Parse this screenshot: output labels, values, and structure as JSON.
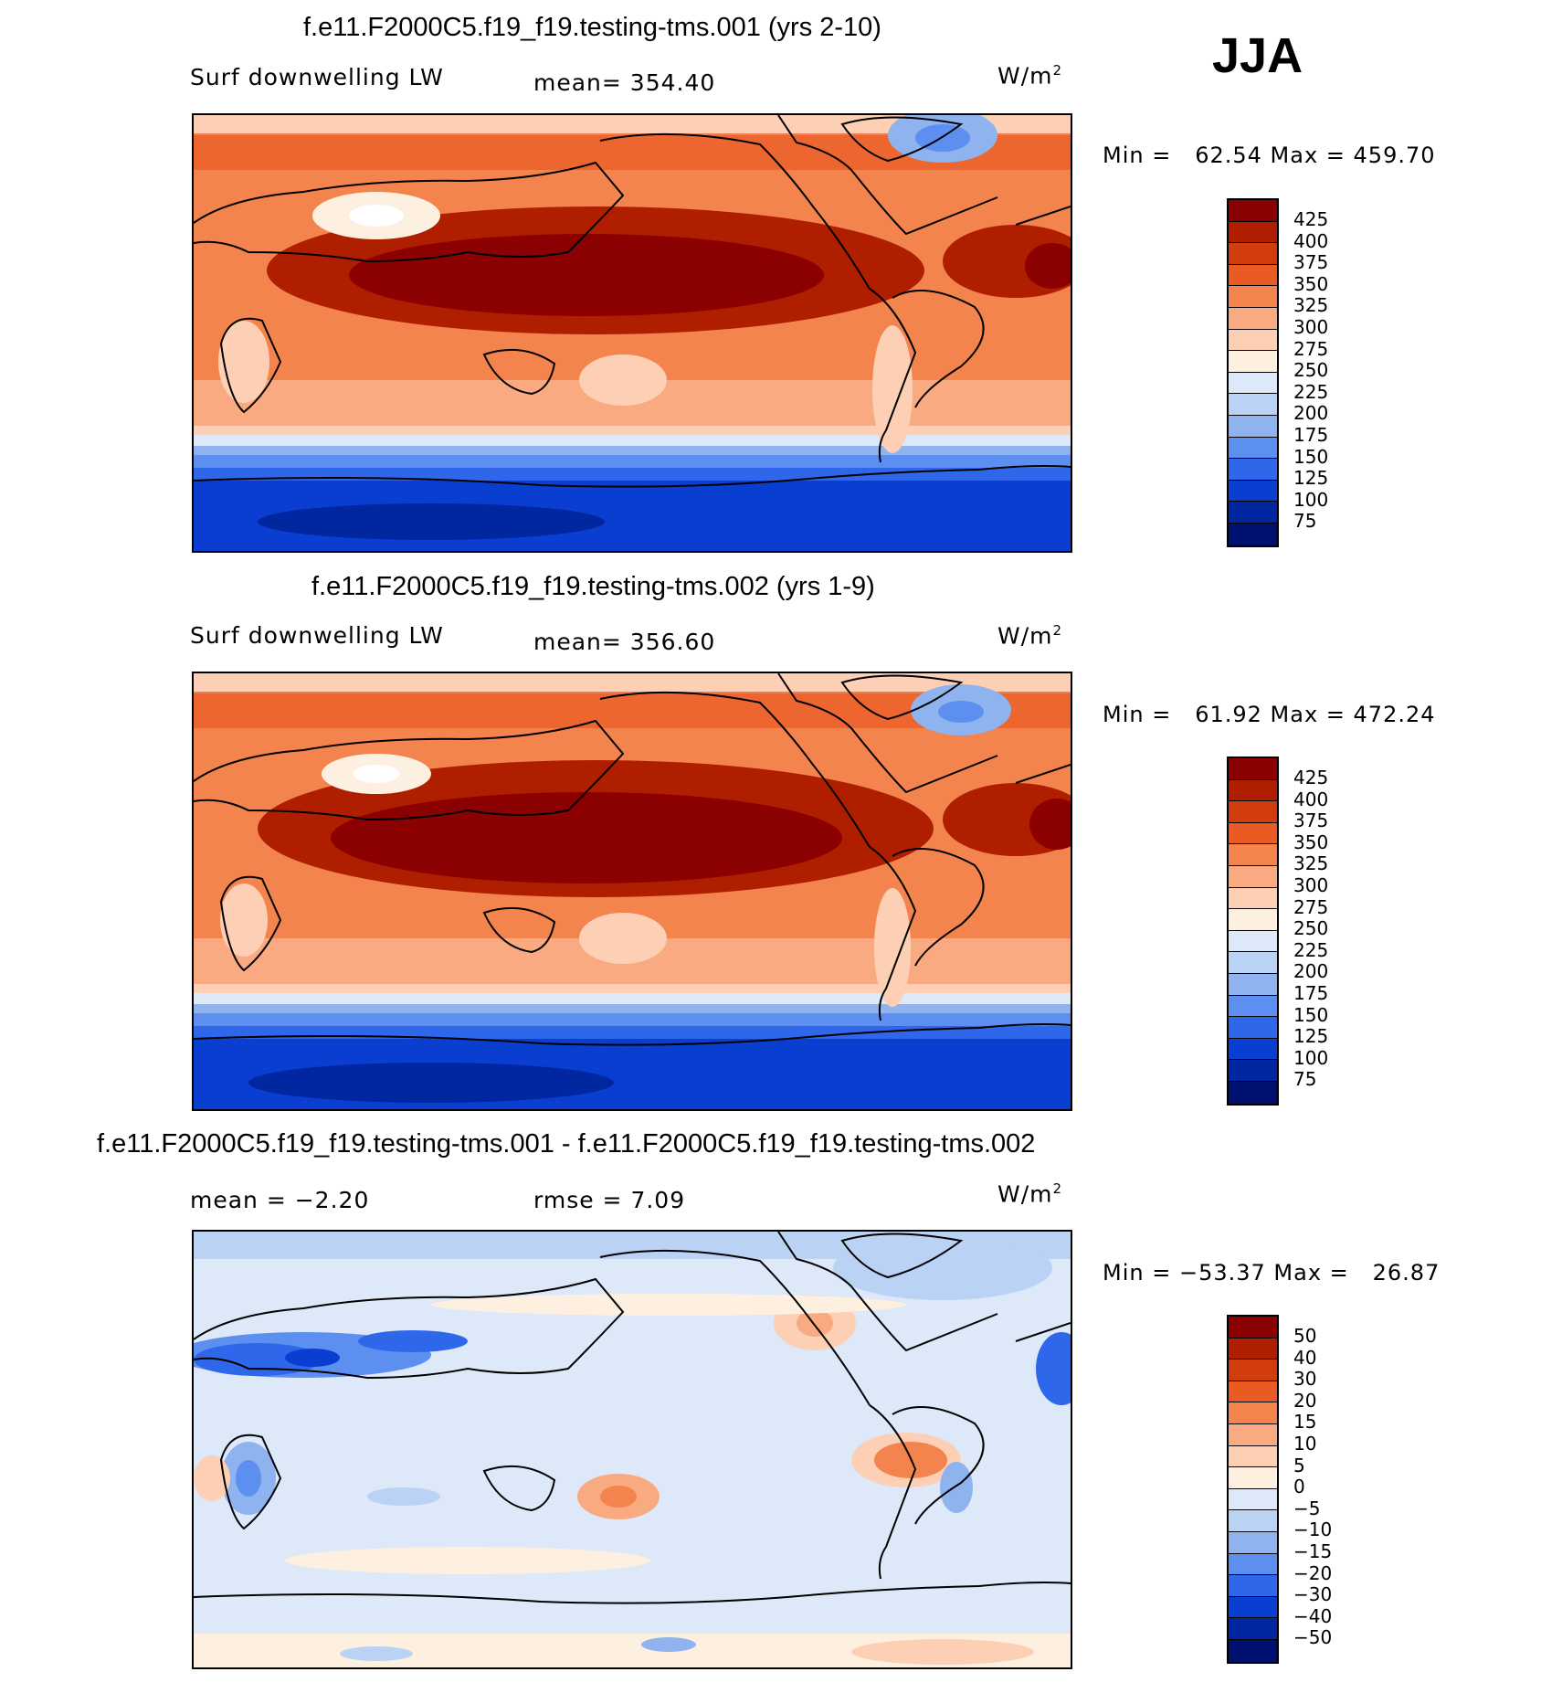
{
  "season": "JJA",
  "units": "W/m",
  "units_sup": "2",
  "panels": [
    {
      "title": "f.e11.F2000C5.f19_f19.testing-tms.001 (yrs 2-10)",
      "variable": "Surf downwelling LW",
      "stat1": "mean= 354.40",
      "stat2": "",
      "minmax": "Min =   62.54 Max = 459.70",
      "colorbar": {
        "labels": [
          "425",
          "400",
          "375",
          "350",
          "325",
          "300",
          "275",
          "250",
          "225",
          "200",
          "175",
          "150",
          "125",
          "100",
          "75"
        ],
        "colors": [
          "#8b0000",
          "#b01e00",
          "#d13d0d",
          "#ea5a23",
          "#f3844e",
          "#f9aa80",
          "#fdd0b5",
          "#fef0e1",
          "#dde8f8",
          "#bad2f4",
          "#8fb3ef",
          "#5d8ff0",
          "#2e67ea",
          "#0a3ed1",
          "#0026a0",
          "#00106e"
        ]
      }
    },
    {
      "title": "f.e11.F2000C5.f19_f19.testing-tms.002 (yrs 1-9)",
      "variable": "Surf downwelling LW",
      "stat1": "mean= 356.60",
      "stat2": "",
      "minmax": "Min =   61.92 Max = 472.24",
      "colorbar": {
        "labels": [
          "425",
          "400",
          "375",
          "350",
          "325",
          "300",
          "275",
          "250",
          "225",
          "200",
          "175",
          "150",
          "125",
          "100",
          "75"
        ],
        "colors": [
          "#8b0000",
          "#b01e00",
          "#d13d0d",
          "#ea5a23",
          "#f3844e",
          "#f9aa80",
          "#fdd0b5",
          "#fef0e1",
          "#dde8f8",
          "#bad2f4",
          "#8fb3ef",
          "#5d8ff0",
          "#2e67ea",
          "#0a3ed1",
          "#0026a0",
          "#00106e"
        ]
      }
    },
    {
      "title": "f.e11.F2000C5.f19_f19.testing-tms.001 - f.e11.F2000C5.f19_f19.testing-tms.002",
      "variable": "",
      "stat1": "mean =   −2.20",
      "stat2": "rmse =    7.09",
      "minmax": "Min = −53.37 Max =   26.87",
      "colorbar": {
        "labels": [
          "50",
          "40",
          "30",
          "20",
          "15",
          "10",
          "5",
          "0",
          "−5",
          "−10",
          "−15",
          "−20",
          "−30",
          "−40",
          "−50"
        ],
        "colors": [
          "#8b0000",
          "#b01e00",
          "#d13d0d",
          "#ea5a23",
          "#f3844e",
          "#f9aa80",
          "#fdd0b5",
          "#fef0e1",
          "#dde8f8",
          "#bad2f4",
          "#8fb3ef",
          "#5d8ff0",
          "#2e67ea",
          "#0a3ed1",
          "#0026a0",
          "#00106e"
        ]
      }
    }
  ]
}
